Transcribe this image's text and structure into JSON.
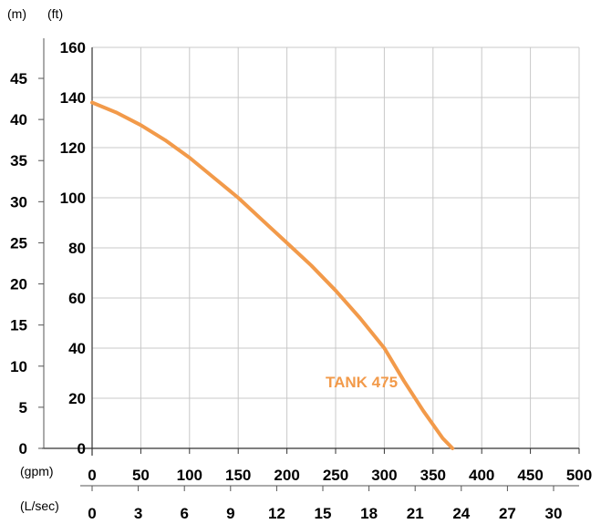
{
  "chart_data": {
    "type": "line",
    "units": {
      "head_m": "(m)",
      "head_ft": "(ft)",
      "flow_gpm": "(gpm)",
      "flow_lsec": "(L/sec)"
    },
    "y_ft_ticks": [
      "0",
      "20",
      "40",
      "60",
      "80",
      "100",
      "120",
      "140",
      "160"
    ],
    "y_m_ticks": [
      "0",
      "5",
      "10",
      "15",
      "20",
      "25",
      "30",
      "35",
      "40",
      "45"
    ],
    "x_gpm_ticks": [
      "0",
      "50",
      "100",
      "150",
      "200",
      "250",
      "300",
      "350",
      "400",
      "450",
      "500"
    ],
    "x_lsec_ticks": [
      "0",
      "3",
      "6",
      "9",
      "12",
      "15",
      "18",
      "21",
      "24",
      "27",
      "30"
    ],
    "xlim": [
      0,
      500
    ],
    "ylim": [
      0,
      160
    ],
    "grid": true,
    "series": [
      {
        "name": "TANK 475",
        "color": "#f29a4a",
        "x": [
          0,
          25,
          50,
          75,
          100,
          125,
          150,
          175,
          200,
          225,
          250,
          275,
          300,
          320,
          340,
          360,
          370
        ],
        "y": [
          138,
          134,
          129,
          123,
          116,
          108,
          100,
          91,
          82,
          73,
          63,
          52,
          40,
          27,
          15,
          4,
          0
        ]
      }
    ]
  }
}
